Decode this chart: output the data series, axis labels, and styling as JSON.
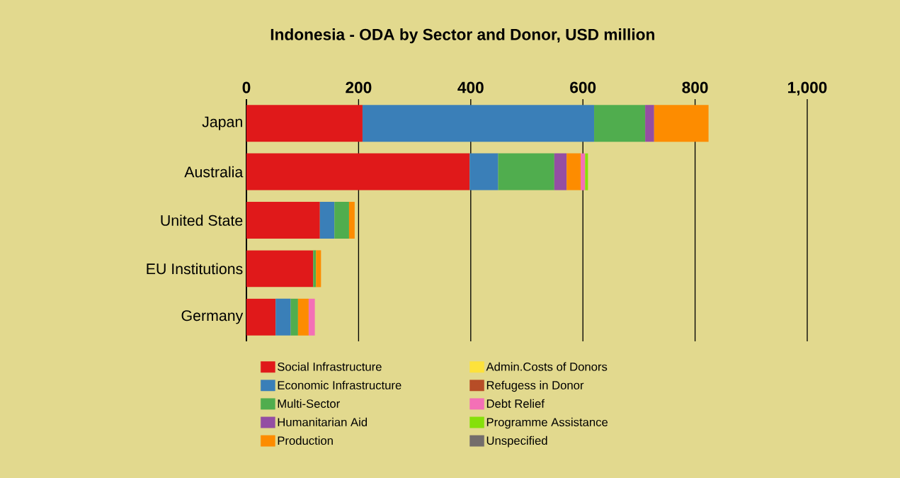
{
  "chart_data": {
    "type": "bar",
    "orientation": "horizontal",
    "stacked": true,
    "title": "Indonesia - ODA by Sector and Donor, USD million",
    "categories": [
      "Japan",
      "Australia",
      "United State",
      "EU Institutions",
      "Germany"
    ],
    "xlim": [
      0,
      1000
    ],
    "xticks": [
      0,
      200,
      400,
      600,
      800,
      {
        "value": 1000,
        "label": "1,000"
      }
    ],
    "grid": "x",
    "legend": "bottom",
    "series": [
      {
        "name": "Social Infrastructure",
        "color": "#e0191a",
        "values": [
          207,
          398,
          131,
          119,
          52
        ]
      },
      {
        "name": "Economic Infrastructure",
        "color": "#3a7fb8",
        "values": [
          413,
          51,
          26,
          null,
          27
        ]
      },
      {
        "name": "Multi-Sector",
        "color": "#50ad4e",
        "values": [
          91,
          100,
          26,
          5,
          13
        ]
      },
      {
        "name": "Humanitarian Aid",
        "color": "#944ea3",
        "values": [
          16,
          22,
          null,
          null,
          null
        ]
      },
      {
        "name": "Production",
        "color": "#fd8c00",
        "values": [
          97,
          25,
          10,
          9,
          19
        ]
      },
      {
        "name": "Admin.Costs of Donors",
        "color": "#fde23b",
        "values": [
          null,
          null,
          null,
          null,
          null
        ]
      },
      {
        "name": "Refugess in Donor",
        "color": "#b74d27",
        "values": [
          null,
          null,
          null,
          null,
          null
        ]
      },
      {
        "name": "Debt Relief",
        "color": "#f470b6",
        "values": [
          null,
          8,
          null,
          null,
          11
        ]
      },
      {
        "name": "Programme Assistance",
        "color": "#86e00a",
        "values": [
          null,
          5,
          null,
          null,
          null
        ]
      },
      {
        "name": "Unspecified",
        "color": "#736d6b",
        "values": [
          null,
          null,
          null,
          null,
          null
        ]
      }
    ]
  }
}
